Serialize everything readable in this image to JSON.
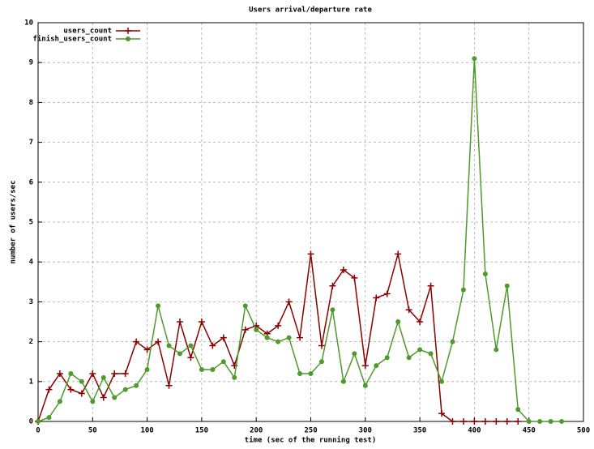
{
  "chart_data": {
    "type": "line",
    "title": "Users arrival/departure rate",
    "x_label": "time (sec of the running test)",
    "y_label": "number of users/sec",
    "x": [
      0,
      10,
      20,
      30,
      40,
      50,
      60,
      70,
      80,
      90,
      100,
      110,
      120,
      130,
      140,
      150,
      160,
      170,
      180,
      190,
      200,
      210,
      220,
      230,
      240,
      250,
      260,
      270,
      280,
      290,
      300,
      310,
      320,
      330,
      340,
      350,
      360,
      370,
      380,
      390,
      400,
      410,
      420,
      430,
      440,
      450,
      460,
      470,
      480
    ],
    "series": [
      {
        "name": "users_count",
        "color": "#8b0000",
        "marker": "plus",
        "values": [
          0,
          0.8,
          1.2,
          0.8,
          0.7,
          1.2,
          0.6,
          1.2,
          1.2,
          2.0,
          1.8,
          2.0,
          0.9,
          2.5,
          1.6,
          2.5,
          1.9,
          2.1,
          1.4,
          2.3,
          2.4,
          2.2,
          2.4,
          3.0,
          2.1,
          4.2,
          1.9,
          3.4,
          3.8,
          3.6,
          1.4,
          3.1,
          3.2,
          4.2,
          2.8,
          2.5,
          3.4,
          0.2,
          0,
          0,
          0,
          0,
          0,
          0,
          0,
          null,
          null,
          null,
          null
        ]
      },
      {
        "name": "finish_users_count",
        "color": "#4e9a2a",
        "marker": "circle",
        "values": [
          0,
          0.1,
          0.5,
          1.2,
          1.0,
          0.5,
          1.1,
          0.6,
          0.8,
          0.9,
          1.3,
          2.9,
          1.9,
          1.7,
          1.9,
          1.3,
          1.3,
          1.5,
          1.1,
          2.9,
          2.3,
          2.1,
          2.0,
          2.1,
          1.2,
          1.2,
          1.5,
          2.8,
          1.0,
          1.7,
          0.9,
          1.4,
          1.6,
          2.5,
          1.6,
          1.8,
          1.7,
          1.0,
          2.0,
          3.3,
          9.1,
          3.7,
          1.8,
          3.4,
          0.3,
          0,
          0,
          0,
          0
        ]
      }
    ],
    "xlim": [
      0,
      500
    ],
    "ylim": [
      0,
      10
    ],
    "xticks": [
      0,
      50,
      100,
      150,
      200,
      250,
      300,
      350,
      400,
      450,
      500
    ],
    "yticks": [
      0,
      1,
      2,
      3,
      4,
      5,
      6,
      7,
      8,
      9,
      10
    ],
    "grid": true,
    "legend": "top-left"
  }
}
